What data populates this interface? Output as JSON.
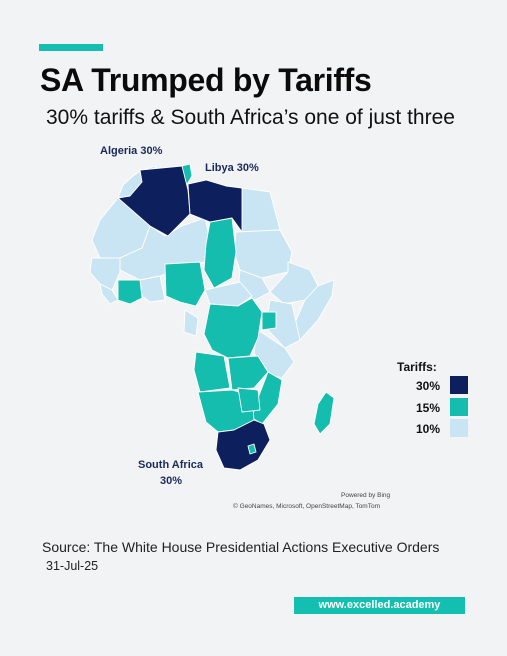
{
  "header": {
    "title": "SA Trumped by Tariffs",
    "subtitle": "30% tariffs & South Africa’s one of just three"
  },
  "map": {
    "labels": {
      "algeria": "Algeria 30%",
      "libya": "Libya 30%",
      "south_africa_name": "South Africa",
      "south_africa_rate": "30%"
    },
    "tariff_by_country": {
      "Algeria": 30,
      "Libya": 30,
      "South Africa": 30,
      "Tunisia": 15,
      "Nigeria": 15,
      "Chad": 15,
      "Ghana": 15,
      "Cameroon": 15,
      "Congo": 15,
      "DR Congo": 15,
      "Angola": 15,
      "Zambia": 15,
      "Zimbabwe": 15,
      "Mozambique": 15,
      "Malawi": 15,
      "Namibia": 15,
      "Botswana": 15,
      "Madagascar": 15,
      "Gabon": 15,
      "Equatorial Guinea": 15,
      "Burundi": 15,
      "Rwanda": 15,
      "Uganda": 15,
      "Lesotho": 15,
      "Eswatini": 15,
      "Cote d'Ivoire": 15,
      "Morocco": 10,
      "Western Sahara": 10,
      "Mauritania": 10,
      "Mali": 10,
      "Niger": 10,
      "Egypt": 10,
      "Sudan": 10,
      "South Sudan": 10,
      "Ethiopia": 10,
      "Eritrea": 10,
      "Somalia": 10,
      "Kenya": 10,
      "Tanzania": 10,
      "Senegal": 10,
      "Guinea": 10,
      "Sierra Leone": 10,
      "Liberia": 10,
      "Burkina Faso": 10,
      "Benin": 10,
      "Togo": 10,
      "Central African Republic": 10,
      "Djibouti": 10
    },
    "powered_by": "Powered by Bing",
    "attribution": "© GeoNames, Microsoft, OpenStreetMap, TomTom"
  },
  "legend": {
    "title": "Tariffs:",
    "items": [
      {
        "label": "30%",
        "color": "#0d1f5c"
      },
      {
        "label": "15%",
        "color": "#14bdae"
      },
      {
        "label": "10%",
        "color": "#c9e4f2"
      }
    ]
  },
  "footer": {
    "source": "Source: The White House Presidential Actions Executive Orders",
    "date": "31-Jul-25",
    "website": "www.excelled.academy"
  },
  "colors": {
    "accent": "#12bfb0",
    "tier_30": "#0d1f5c",
    "tier_15": "#14bdae",
    "tier_10": "#c9e4f2"
  }
}
